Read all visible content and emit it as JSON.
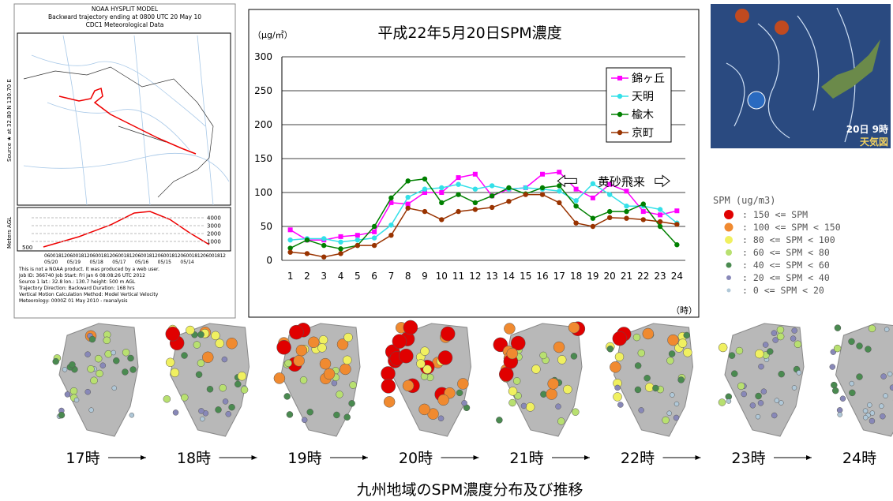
{
  "chart_data": {
    "type": "line",
    "title": "平成22年5月20日SPM濃度",
    "y_unit": "（μg/㎥）",
    "x_unit": "（時）",
    "annotation": "黄砂飛来",
    "categories": [
      "1",
      "2",
      "3",
      "4",
      "5",
      "6",
      "7",
      "8",
      "9",
      "10",
      "11",
      "12",
      "13",
      "14",
      "15",
      "16",
      "17",
      "18",
      "19",
      "20",
      "21",
      "22",
      "23",
      "24"
    ],
    "ylim": [
      0,
      300
    ],
    "yticks": [
      0,
      50,
      100,
      150,
      200,
      250,
      300
    ],
    "grid": true,
    "series": [
      {
        "name": "錦ヶ丘",
        "color": "#ff00ff",
        "marker": "square",
        "values": [
          45,
          30,
          30,
          35,
          37,
          42,
          85,
          83,
          100,
          100,
          122,
          127,
          95,
          105,
          107,
          127,
          130,
          105,
          92,
          112,
          102,
          72,
          67,
          73
        ]
      },
      {
        "name": "天明",
        "color": "#33e0e8",
        "marker": "circle",
        "values": [
          30,
          32,
          32,
          27,
          30,
          33,
          52,
          93,
          105,
          107,
          112,
          105,
          110,
          105,
          107,
          105,
          102,
          88,
          113,
          97,
          80,
          80,
          75,
          55
        ]
      },
      {
        "name": "楡木",
        "color": "#008000",
        "marker": "circle",
        "values": [
          18,
          30,
          22,
          17,
          22,
          50,
          92,
          117,
          120,
          85,
          97,
          85,
          95,
          107,
          98,
          107,
          110,
          80,
          62,
          72,
          72,
          83,
          50,
          23
        ]
      },
      {
        "name": "京町",
        "color": "#993300",
        "marker": "circle",
        "values": [
          12,
          10,
          5,
          10,
          22,
          22,
          37,
          77,
          72,
          60,
          72,
          75,
          78,
          87,
          97,
          97,
          85,
          55,
          50,
          63,
          62,
          60,
          57,
          53
        ]
      }
    ]
  },
  "hysplit": {
    "title": "NOAA HYSPLIT MODEL",
    "subtitle": "Backward trajectory ending at 0800 UTC 20 May 10",
    "data_source": "CDC1 Meteorological Data",
    "source_label": "Source ★ at 32.80 N 130.70 E",
    "height_axis": "Meters AGL",
    "height_ticks": [
      "4000",
      "3000",
      "2000",
      "1000"
    ],
    "start_height": "500",
    "time_ticks": "0600181206001812060018120600181206001812060018120600181206001812",
    "date_ticks": "05/20      05/19      05/18      05/17      05/16      05/15      05/14",
    "footer": [
      "This is not a NOAA product. It was produced by a web user.",
      "Job ID: 366740          Job Start: Fri Jan  6 08:08:26 UTC 2012",
      "Source 1    lat.: 32.8    lon.: 130.7    height: 500 m AGL",
      "Trajectory Direction: Backward    Duration: 168 hrs",
      "Vertical Motion Calculation Method:     Model Vertical Velocity",
      "Meteorology: 0000Z 01 May 2010 - reanalysis"
    ]
  },
  "weather_map": {
    "time": "20日 9時",
    "label": "天気図"
  },
  "spm_legend": {
    "title": "SPM (ug/m3)",
    "rows": [
      {
        "text": ":  150 <= SPM",
        "color": "#e00000"
      },
      {
        "text": ":  100 <= SPM < 150",
        "color": "#f08a30"
      },
      {
        "text": ":   80 <= SPM < 100",
        "color": "#f0f060"
      },
      {
        "text": ":   60 <= SPM <  80",
        "color": "#b8e070"
      },
      {
        "text": ":   40 <= SPM <  60",
        "color": "#4a8a50"
      },
      {
        "text": ":   20 <= SPM <  40",
        "color": "#8888b8"
      },
      {
        "text": ":    0 <= SPM <  20",
        "color": "#b0c8d8"
      }
    ]
  },
  "timeline": {
    "times": [
      "17時",
      "18時",
      "19時",
      "20時",
      "21時",
      "22時",
      "23時",
      "24時"
    ],
    "caption": "九州地域のSPM濃度分布及び推移"
  }
}
